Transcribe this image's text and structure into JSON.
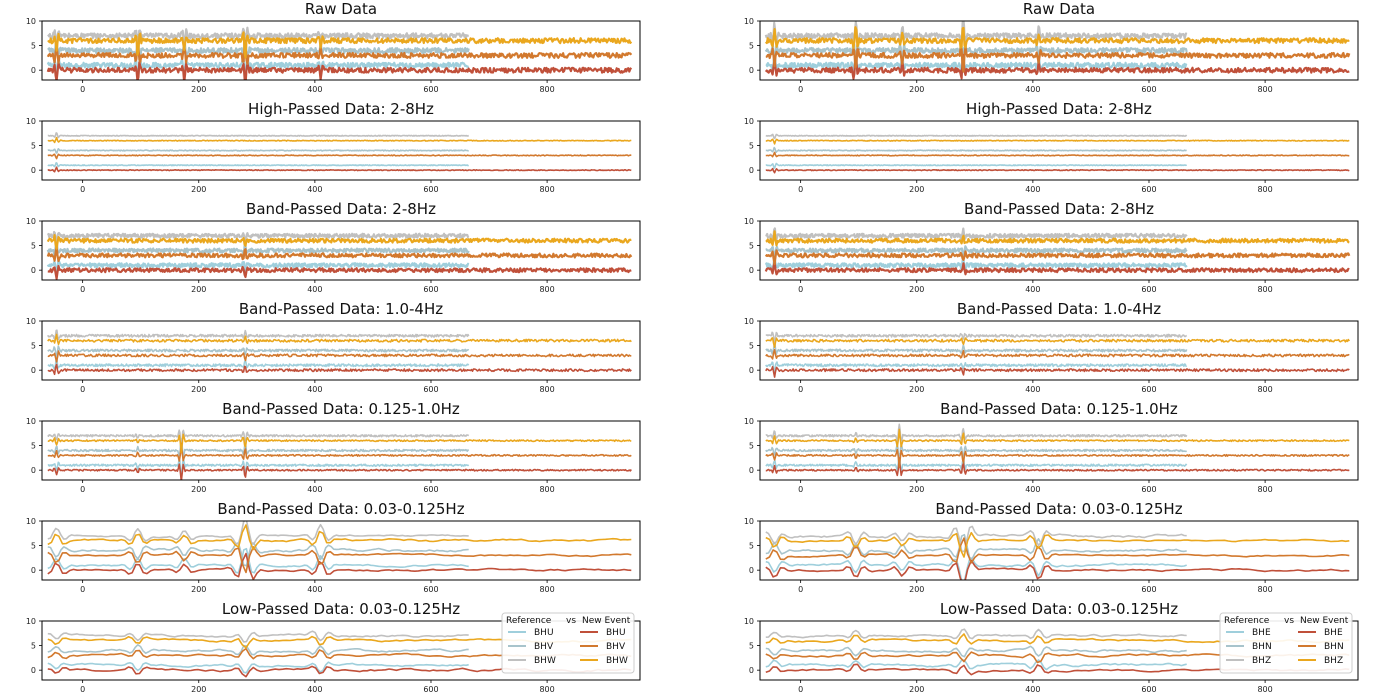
{
  "colors": {
    "ref_e": "#9fcfdc",
    "ref_n": "#a8c4cc",
    "ref_z": "#c0c0c0",
    "new_e": "#c0503a",
    "new_n": "#d2792e",
    "new_z": "#eaa71e"
  },
  "columns": [
    {
      "id": "left",
      "legend": {
        "header_left": "Reference",
        "header_mid": "vs",
        "header_right": "New Event",
        "ref": [
          "BHU",
          "BHV",
          "BHW"
        ],
        "new": [
          "BHU",
          "BHV",
          "BHW"
        ]
      }
    },
    {
      "id": "right",
      "legend": {
        "header_left": "Reference",
        "header_mid": "vs",
        "header_right": "New Event",
        "ref": [
          "BHE",
          "BHN",
          "BHZ"
        ],
        "new": [
          "BHE",
          "BHN",
          "BHZ"
        ]
      }
    }
  ],
  "chart_data": [
    {
      "type": "line",
      "title": "Raw Data",
      "xlim": [
        -70,
        960
      ],
      "ylim": [
        -2,
        10
      ],
      "xticks": [
        "0",
        "200",
        "400",
        "600",
        "800"
      ],
      "yticks": [
        "0",
        "5",
        "10"
      ],
      "reference": {
        "x_range": [
          -60,
          665
        ],
        "offsets": [
          1,
          4,
          7
        ],
        "amplitude": 0.5
      },
      "new_event": {
        "x_range": [
          -60,
          945
        ],
        "offsets": [
          0,
          3,
          6
        ],
        "amplitude": 0.5
      }
    },
    {
      "type": "line",
      "title": "High-Passed Data: 2-8Hz",
      "xlim": [
        -70,
        960
      ],
      "ylim": [
        -2,
        10
      ],
      "xticks": [
        "0",
        "200",
        "400",
        "600",
        "800"
      ],
      "yticks": [
        "0",
        "5",
        "10"
      ],
      "reference": {
        "x_range": [
          -60,
          665
        ],
        "offsets": [
          1,
          4,
          7
        ],
        "amplitude": 0.08
      },
      "new_event": {
        "x_range": [
          -60,
          945
        ],
        "offsets": [
          0,
          3,
          6
        ],
        "amplitude": 0.08
      }
    },
    {
      "type": "line",
      "title": "Band-Passed Data: 2-8Hz",
      "xlim": [
        -70,
        960
      ],
      "ylim": [
        -2,
        10
      ],
      "xticks": [
        "0",
        "200",
        "400",
        "600",
        "800"
      ],
      "yticks": [
        "0",
        "5",
        "10"
      ],
      "reference": {
        "x_range": [
          -60,
          665
        ],
        "offsets": [
          1,
          4,
          7
        ],
        "amplitude": 0.4
      },
      "new_event": {
        "x_range": [
          -60,
          945
        ],
        "offsets": [
          0,
          3,
          6
        ],
        "amplitude": 0.4
      }
    },
    {
      "type": "line",
      "title": "Band-Passed Data: 1.0-4Hz",
      "xlim": [
        -70,
        960
      ],
      "ylim": [
        -2,
        10
      ],
      "xticks": [
        "0",
        "200",
        "400",
        "600",
        "800"
      ],
      "yticks": [
        "0",
        "5",
        "10"
      ],
      "reference": {
        "x_range": [
          -60,
          665
        ],
        "offsets": [
          1,
          4,
          7
        ],
        "amplitude": 0.25
      },
      "new_event": {
        "x_range": [
          -60,
          945
        ],
        "offsets": [
          0,
          3,
          6
        ],
        "amplitude": 0.25
      }
    },
    {
      "type": "line",
      "title": "Band-Passed Data: 0.125-1.0Hz",
      "xlim": [
        -70,
        960
      ],
      "ylim": [
        -2,
        10
      ],
      "xticks": [
        "0",
        "200",
        "400",
        "600",
        "800"
      ],
      "yticks": [
        "0",
        "5",
        "10"
      ],
      "reference": {
        "x_range": [
          -60,
          665
        ],
        "offsets": [
          1,
          4,
          7
        ],
        "amplitude": 0.2
      },
      "new_event": {
        "x_range": [
          -60,
          945
        ],
        "offsets": [
          0,
          3,
          6
        ],
        "amplitude": 0.15
      }
    },
    {
      "type": "line",
      "title": "Band-Passed Data: 0.03-0.125Hz",
      "xlim": [
        -70,
        960
      ],
      "ylim": [
        -2,
        10
      ],
      "xticks": [
        "0",
        "200",
        "400",
        "600",
        "800"
      ],
      "yticks": [
        "0",
        "5",
        "10"
      ],
      "reference": {
        "x_range": [
          -60,
          665
        ],
        "offsets": [
          1,
          4,
          7
        ],
        "amplitude": 0.4
      },
      "new_event": {
        "x_range": [
          -60,
          945
        ],
        "offsets": [
          0,
          3,
          6
        ],
        "amplitude": 0.4
      }
    },
    {
      "type": "line",
      "title": "Low-Passed Data: 0.03-0.125Hz",
      "xlim": [
        -70,
        960
      ],
      "ylim": [
        -2,
        10
      ],
      "xticks": [
        "0",
        "200",
        "400",
        "600",
        "800"
      ],
      "yticks": [
        "0",
        "5",
        "10"
      ],
      "reference": {
        "x_range": [
          -60,
          665
        ],
        "offsets": [
          1,
          4,
          7
        ],
        "amplitude": 0.4
      },
      "new_event": {
        "x_range": [
          -60,
          945
        ],
        "offsets": [
          0,
          3,
          6
        ],
        "amplitude": 0.4
      }
    }
  ]
}
